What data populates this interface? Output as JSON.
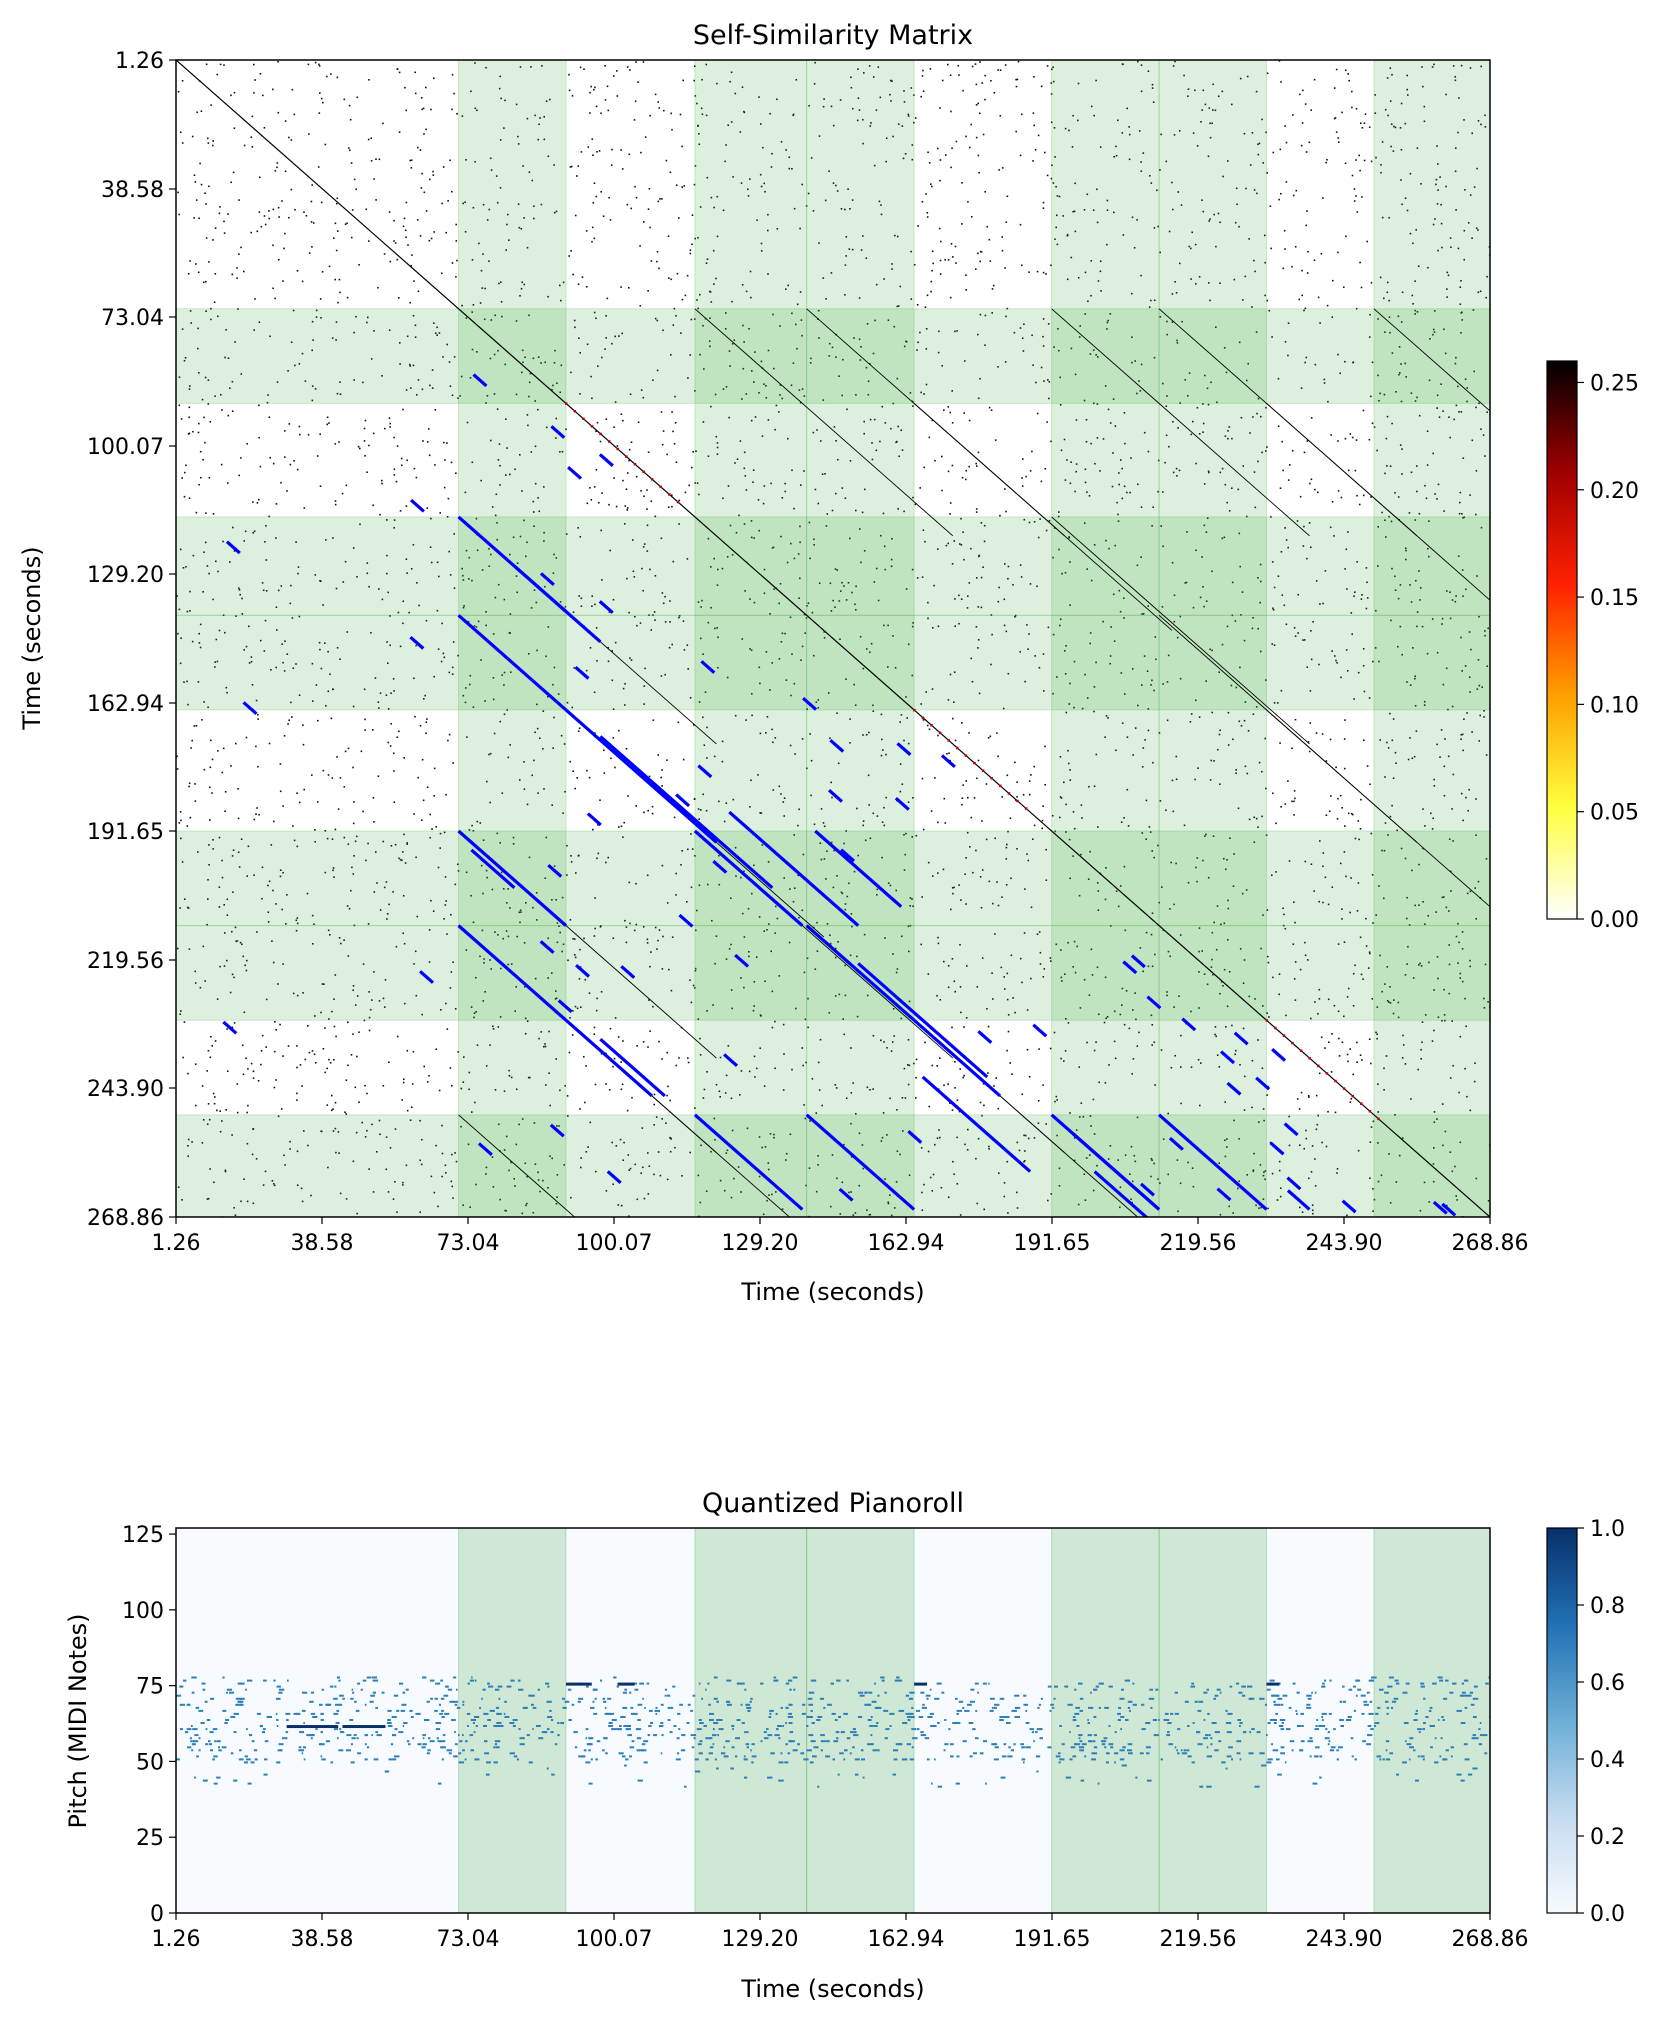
{
  "chart_data": [
    {
      "type": "heatmap",
      "title": "Self-Similarity Matrix",
      "xlabel": "Time (seconds)",
      "ylabel": "Time (seconds)",
      "tick_labels": [
        "1.26",
        "38.58",
        "73.04",
        "100.07",
        "129.20",
        "162.94",
        "191.65",
        "219.56",
        "243.90",
        "268.86"
      ],
      "colorbar": {
        "ticks": [
          "0.00",
          "0.05",
          "0.10",
          "0.15",
          "0.20",
          "0.25"
        ],
        "range": [
          0,
          0.26
        ],
        "colormap": "hot_r"
      },
      "diagonal_color": "#000000",
      "match_line_color": "#0000ff",
      "segment_shade_color": "#2ca02c",
      "shaded_segments": [
        [
          67.0,
          92.0
        ],
        [
          122.0,
          148.0
        ],
        [
          148.0,
          173.0
        ],
        [
          205.0,
          230.0
        ],
        [
          230.0,
          255.0
        ],
        [
          280.0,
          307.0
        ]
      ],
      "segment_boundaries": [
        1.26,
        67.0,
        92.0,
        122.0,
        148.0,
        173.0,
        205.0,
        230.0,
        255.0,
        280.0,
        307.0
      ],
      "axis_range": [
        1.26,
        307.0
      ]
    },
    {
      "type": "heatmap",
      "title": "Quantized Pianoroll",
      "xlabel": "Time (seconds)",
      "ylabel": "Pitch (MIDI Notes)",
      "x_tick_labels": [
        "1.26",
        "38.58",
        "73.04",
        "100.07",
        "129.20",
        "162.94",
        "191.65",
        "219.56",
        "243.90",
        "268.86"
      ],
      "y_tick_labels": [
        "0",
        "25",
        "50",
        "75",
        "100",
        "125"
      ],
      "ylim": [
        0,
        127
      ],
      "colorbar": {
        "ticks": [
          "0.0",
          "0.2",
          "0.4",
          "0.6",
          "0.8",
          "1.0"
        ],
        "range": [
          0,
          1
        ],
        "colormap": "Blues"
      },
      "note_color": "#2c7fb8",
      "shaded_segments": [
        [
          67.0,
          92.0
        ],
        [
          122.0,
          148.0
        ],
        [
          148.0,
          173.0
        ],
        [
          205.0,
          230.0
        ],
        [
          230.0,
          255.0
        ],
        [
          280.0,
          307.0
        ]
      ]
    }
  ]
}
